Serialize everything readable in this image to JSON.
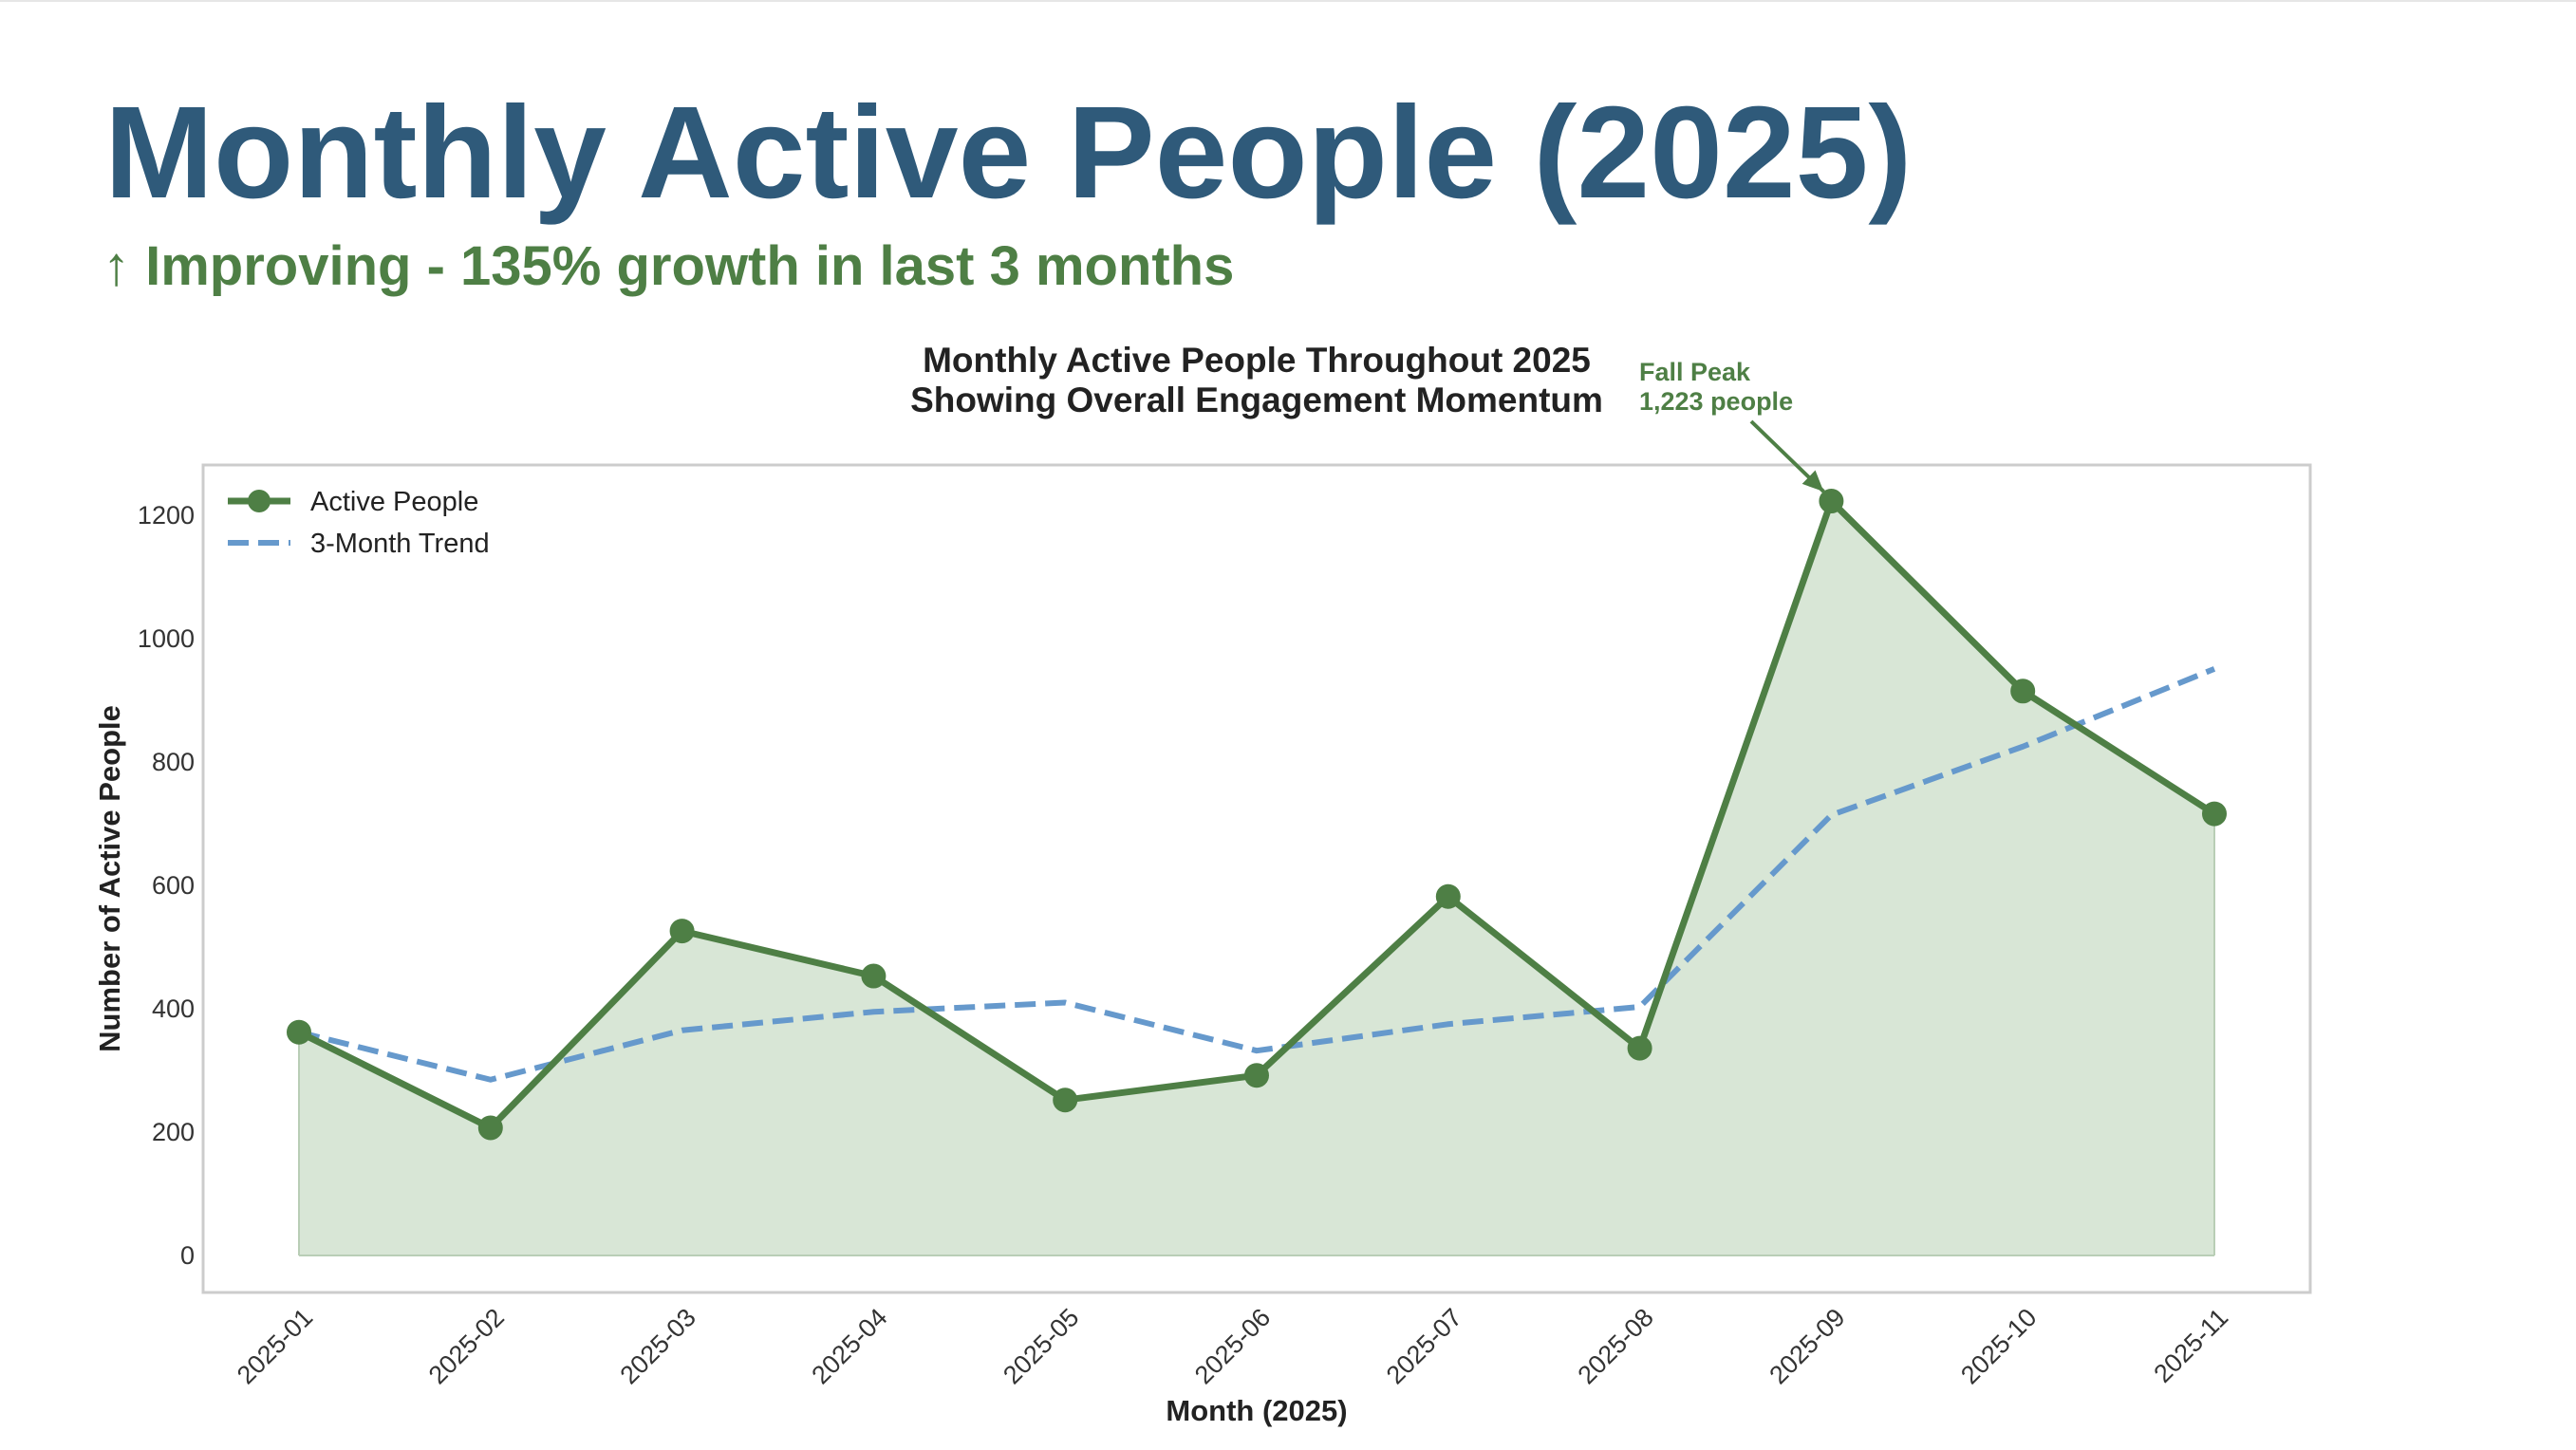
{
  "header": {
    "title": "Monthly Active People (2025)",
    "subtitle": "↑ Improving - 135% growth in last 3 months"
  },
  "colors": {
    "title": "#2f5a7a",
    "accent_green": "#4e7f45",
    "area_fill": "#d8e6d6",
    "trend_blue": "#6699cc",
    "grid": "#ebebeb",
    "frame": "#cccccc"
  },
  "chart_data": {
    "type": "line",
    "title": "Monthly Active People Throughout 2025",
    "subtitle": "Showing Overall Engagement Momentum",
    "xlabel": "Month (2025)",
    "ylabel": "Number of Active People",
    "categories": [
      "2025-01",
      "2025-02",
      "2025-03",
      "2025-04",
      "2025-05",
      "2025-06",
      "2025-07",
      "2025-08",
      "2025-09",
      "2025-10",
      "2025-11"
    ],
    "series": [
      {
        "name": "Active People",
        "style": "solid-with-markers-and-area",
        "values": [
          362,
          207,
          526,
          453,
          252,
          292,
          582,
          336,
          1223,
          915,
          716
        ]
      },
      {
        "name": "3-Month Trend",
        "style": "dashed",
        "values": [
          362,
          285,
          365,
          395,
          410,
          332,
          375,
          403,
          714,
          825,
          951
        ]
      }
    ],
    "yticks": [
      0,
      200,
      400,
      600,
      800,
      1000,
      1200
    ],
    "ylim": [
      -60,
      1285
    ],
    "grid": true,
    "legend": "top-left",
    "annotation": {
      "line1": "Fall Peak",
      "line2": "1,223 people",
      "target_category": "2025-09",
      "target_value": 1223
    }
  }
}
